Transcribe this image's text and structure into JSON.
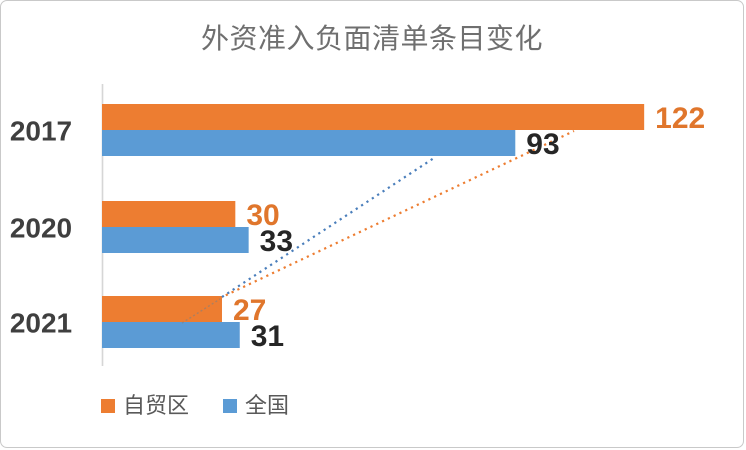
{
  "chart_data": {
    "type": "bar",
    "orientation": "horizontal",
    "title": "外资准入负面清单条目变化",
    "categories": [
      "2017",
      "2020",
      "2021"
    ],
    "series": [
      {
        "name": "自贸区",
        "values": [
          122,
          30,
          27
        ],
        "color": "#ED7D31",
        "label_color": "#E0762C"
      },
      {
        "name": "全国",
        "values": [
          93,
          33,
          31
        ],
        "color": "#5B9BD5",
        "label_color": "#262626"
      }
    ],
    "value_axis": {
      "visible": false,
      "range": [
        0,
        130
      ]
    },
    "grid": false,
    "legend_position": "bottom-left",
    "trend_lines": [
      {
        "series": "自贸区",
        "from": "2021",
        "to": "2017",
        "style": "dotted",
        "color": "#ED7D31"
      },
      {
        "series": "全国",
        "from": "2021",
        "to": "2017",
        "style": "dotted",
        "color": "#4A7EBB"
      }
    ],
    "category_label_color": "#3F3F3F",
    "title_color": "#6F6F6F",
    "axis_line_color": "#D6D6D6"
  },
  "legend": {
    "items": [
      {
        "label": "自贸区",
        "color": "#ED7D31"
      },
      {
        "label": "全国",
        "color": "#5B9BD5"
      }
    ]
  }
}
